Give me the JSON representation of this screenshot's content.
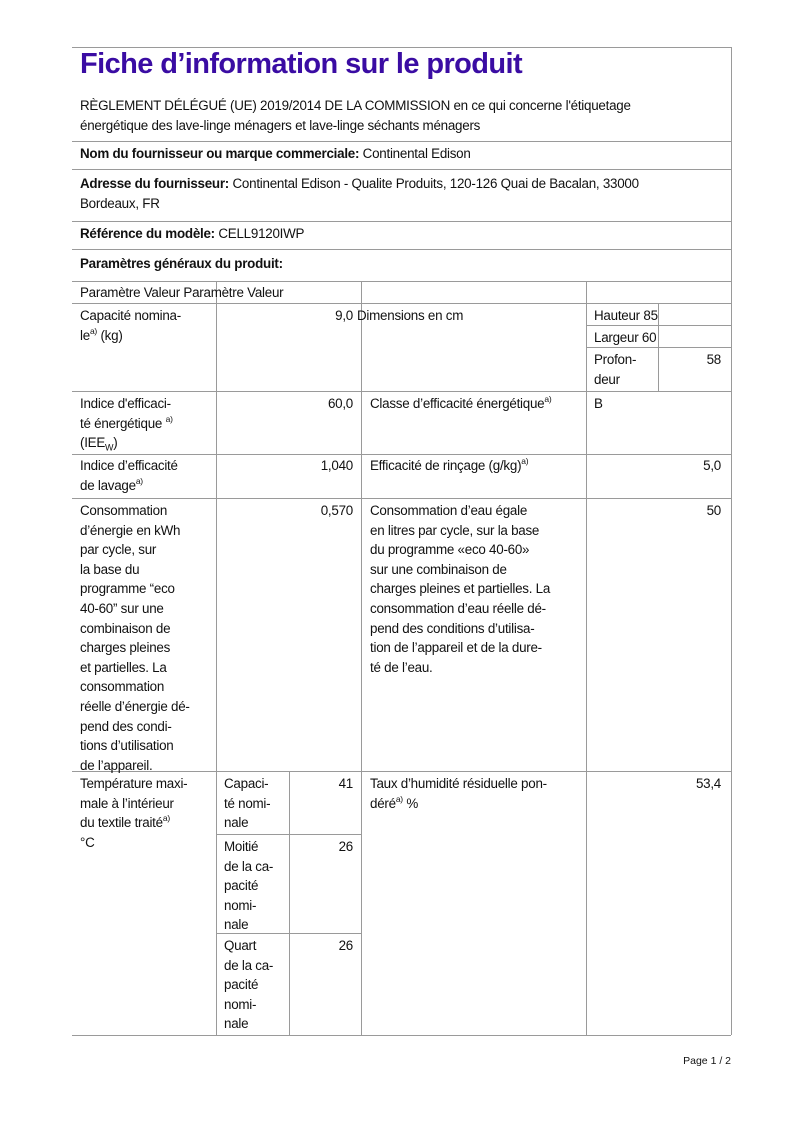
{
  "title": "Fiche d’information sur le produit",
  "regulation": "RÈGLEMENT DÉLÉGUÉ (UE) 2019/2014 DE LA COMMISSION en ce qui concerne l'étiquetage\nénergétique des lave-linge ménagers et lave-linge séchants ménagers",
  "supplier": {
    "label": "Nom du fournisseur ou marque commerciale:",
    "value": " Continental Edison"
  },
  "address": {
    "label": "Adresse du fournisseur:",
    "value": " Continental Edison - Qualite Produits, 120-126 Quai de Bacalan, 33000\nBordeaux, FR"
  },
  "model": {
    "label": "Référence du modèle:",
    "value": " CELL9120IWP"
  },
  "general_params": "Paramètres généraux du produit:",
  "table": {
    "header": "Paramètre Valeur Paramètre Valeur",
    "capacity": {
      "label": "Capacité  nomina-\nle",
      "sup": "a)",
      "unit": "  (kg)",
      "value": "9,0"
    },
    "dimensions": {
      "label": "Dimensions en cm",
      "height_label": "Hauteur",
      "height": "85",
      "width_label": "Largeur",
      "width": "60",
      "depth_label": "Profon-\ndeur",
      "depth": "58"
    },
    "eei": {
      "label": "Indice d'efficaci-\nté  énergétique ",
      "sup": "a)",
      "unit_pre": "  (IEE",
      "unit_sub": "W",
      "unit_post": ")",
      "value": "60,0"
    },
    "energy_class": {
      "label": "Classe d’efficacité énergétique",
      "sup": "a)",
      "value": "B"
    },
    "wash_index": {
      "label": "Indice  d’efficacité\nde lavage",
      "sup": "a)",
      "value": "1,040"
    },
    "rinse": {
      "label": "Efficacité de rinçage (g/kg)",
      "sup": "a)",
      "value": "5,0"
    },
    "energy_consumption": {
      "label": "Consommation\nd’énergie  en  kWh\npar  cycle,  sur\nla  base  du\nprogramme      “eco\n40-60”      sur      une\ncombinaison          de\ncharges          pleines\net   partielles.    La\nconsommation\nréelle d’énergie dé-\npend   des   condi-\ntions     d’utilisation\nde l’appareil.",
      "value": "0,570"
    },
    "water_consumption": {
      "label": "Consommation d’eau égale\nen litres par cycle, sur la base\ndu programme «eco 40-60»\nsur une combinaison de\ncharges pleines et partielles. La\nconsommation d’eau réelle dé-\npend des conditions d’utilisa-\ntion de l’appareil et de la dure-\nté de l’eau.",
      "value": "50"
    },
    "max_temp": {
      "label": "Température maxi-\nmale  à  l’intérieur\ndu  textile  traité",
      "sup": "a)",
      "unit": "  °C",
      "rows": [
        {
          "label": "Capaci-\nté nomi-\nnale",
          "value": "41"
        },
        {
          "label": "Moitié\nde la ca-\npacité\nnomi-\nnale",
          "value": "26"
        },
        {
          "label": "Quart\nde la ca-\npacité\nnomi-\nnale",
          "value": "26"
        }
      ]
    },
    "moisture": {
      "label": "Taux d’humidité résiduelle pon-\ndéré",
      "sup": "a)",
      "unit": "  %",
      "value": "53,4"
    }
  },
  "footer": {
    "page": "Page 1 / 2"
  },
  "colors": {
    "title": "#3a0ca3",
    "rules": "#9a9a9a"
  }
}
